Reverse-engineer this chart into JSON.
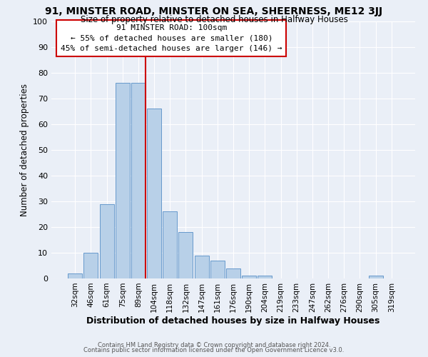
{
  "title1": "91, MINSTER ROAD, MINSTER ON SEA, SHEERNESS, ME12 3JJ",
  "title2": "Size of property relative to detached houses in Halfway Houses",
  "xlabel": "Distribution of detached houses by size in Halfway Houses",
  "ylabel": "Number of detached properties",
  "bar_labels": [
    "32sqm",
    "46sqm",
    "61sqm",
    "75sqm",
    "89sqm",
    "104sqm",
    "118sqm",
    "132sqm",
    "147sqm",
    "161sqm",
    "176sqm",
    "190sqm",
    "204sqm",
    "219sqm",
    "233sqm",
    "247sqm",
    "262sqm",
    "276sqm",
    "290sqm",
    "305sqm",
    "319sqm"
  ],
  "bar_values": [
    2,
    10,
    29,
    76,
    76,
    66,
    26,
    18,
    9,
    7,
    4,
    1,
    1,
    0,
    0,
    0,
    0,
    0,
    0,
    1,
    0
  ],
  "bar_color": "#b8d0e8",
  "bar_edge_color": "#6699cc",
  "bg_color": "#eaeff7",
  "grid_color": "#ffffff",
  "vline_color": "#cc0000",
  "annotation_title": "91 MINSTER ROAD: 100sqm",
  "annotation_line1": "← 55% of detached houses are smaller (180)",
  "annotation_line2": "45% of semi-detached houses are larger (146) →",
  "annotation_box_color": "#ffffff",
  "annotation_box_edge_color": "#cc0000",
  "ylim": [
    0,
    100
  ],
  "yticks": [
    0,
    10,
    20,
    30,
    40,
    50,
    60,
    70,
    80,
    90,
    100
  ],
  "footer1": "Contains HM Land Registry data © Crown copyright and database right 2024.",
  "footer2": "Contains public sector information licensed under the Open Government Licence v3.0."
}
